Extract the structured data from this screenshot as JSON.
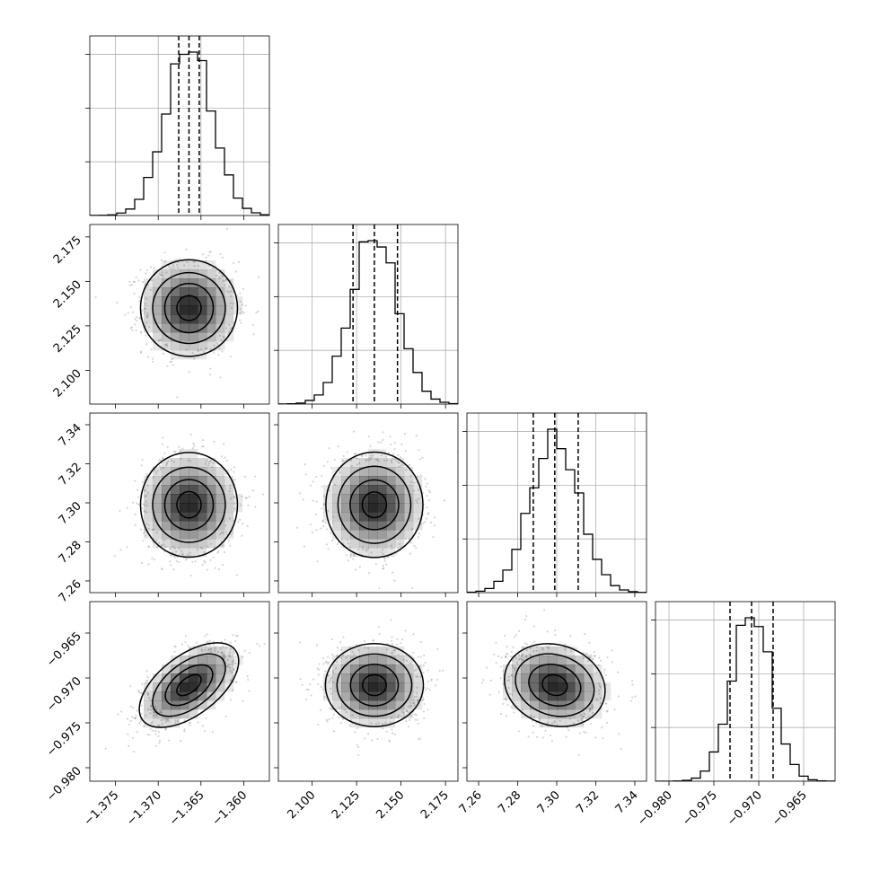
{
  "chart_data": {
    "type": "corner",
    "parameters": [
      {
        "range": [
          -1.378,
          -1.357
        ],
        "ticks": [
          -1.375,
          -1.37,
          -1.365,
          -1.36
        ],
        "tick_labels": [
          "−1.375",
          "−1.370",
          "−1.365",
          "−1.360"
        ],
        "mean": -1.3664,
        "sigma": 0.0027,
        "quantiles": [
          -1.3676,
          -1.3664,
          -1.3652
        ]
      },
      {
        "range": [
          2.081,
          2.182
        ],
        "ticks": [
          2.1,
          2.125,
          2.15,
          2.175
        ],
        "tick_labels": [
          "2.100",
          "2.125",
          "2.150",
          "2.175"
        ],
        "mean": 2.135,
        "sigma": 0.013,
        "quantiles": [
          2.123,
          2.135,
          2.148
        ]
      },
      {
        "range": [
          7.254,
          7.346
        ],
        "ticks": [
          7.26,
          7.28,
          7.3,
          7.32,
          7.34
        ],
        "tick_labels": [
          "7.26",
          "7.28",
          "7.30",
          "7.32",
          "7.34"
        ],
        "mean": 7.299,
        "sigma": 0.0125,
        "quantiles": [
          7.288,
          7.299,
          7.311
        ]
      },
      {
        "range": [
          -0.9815,
          -0.9615
        ],
        "ticks": [
          -0.98,
          -0.975,
          -0.97,
          -0.965
        ],
        "tick_labels": [
          "−0.980",
          "−0.975",
          "−0.970",
          "−0.965"
        ],
        "mean": -0.9708,
        "sigma": 0.0022,
        "quantiles": [
          -0.9732,
          -0.9708,
          -0.9684
        ]
      }
    ],
    "correlations": {
      "1-0": 0.0,
      "2-0": 0.0,
      "2-1": 0.0,
      "3-0": 0.55,
      "3-1": 0.0,
      "3-2": -0.15
    },
    "histogram_bins": 20,
    "contour_levels_sigma": [
      0.5,
      1.0,
      1.5,
      2.0
    ],
    "grid": true,
    "colors": {
      "line": "#000000",
      "points": "#888888",
      "grid": "#b0b0b0",
      "density": "#000000"
    }
  }
}
